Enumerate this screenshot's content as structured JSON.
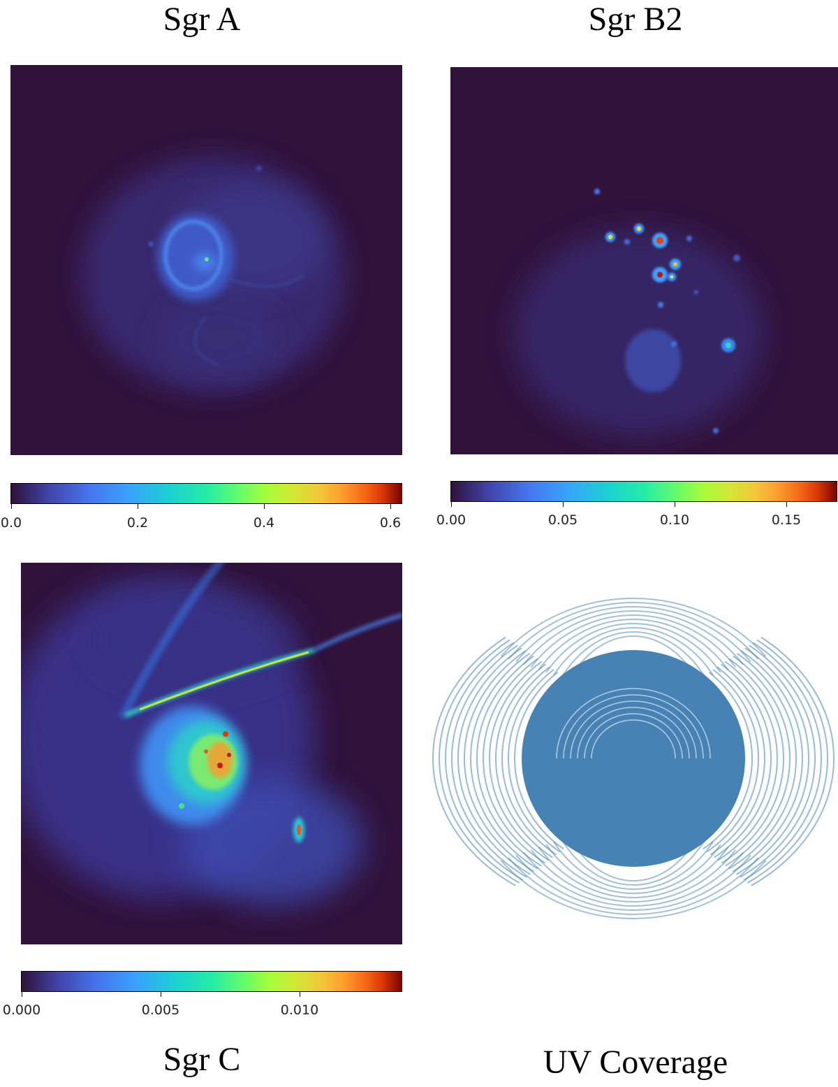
{
  "panels": {
    "sgr_a": {
      "title": "Sgr A",
      "colorbar": {
        "colormap": "turbo",
        "min": 0.0,
        "max": 0.62,
        "ticks": [
          "0.0",
          "0.2",
          "0.4",
          "0.6"
        ],
        "tick_values": [
          0.0,
          0.2,
          0.4,
          0.6
        ]
      }
    },
    "sgr_b2": {
      "title": "Sgr B2",
      "colorbar": {
        "colormap": "turbo",
        "min": 0.0,
        "max": 0.173,
        "ticks": [
          "0.00",
          "0.05",
          "0.10",
          "0.15"
        ],
        "tick_values": [
          0.0,
          0.05,
          0.1,
          0.15
        ]
      }
    },
    "sgr_c": {
      "title": "Sgr C",
      "colorbar": {
        "colormap": "turbo",
        "min": 0.0,
        "max": 0.0137,
        "ticks": [
          "0.000",
          "0.005",
          "0.010"
        ],
        "tick_values": [
          0.0,
          0.005,
          0.01
        ]
      }
    },
    "uv": {
      "title": "UV Coverage",
      "color": "#4682b4"
    }
  },
  "colors": {
    "background_dark": "#30123b",
    "uv_color": "#4682b4"
  }
}
